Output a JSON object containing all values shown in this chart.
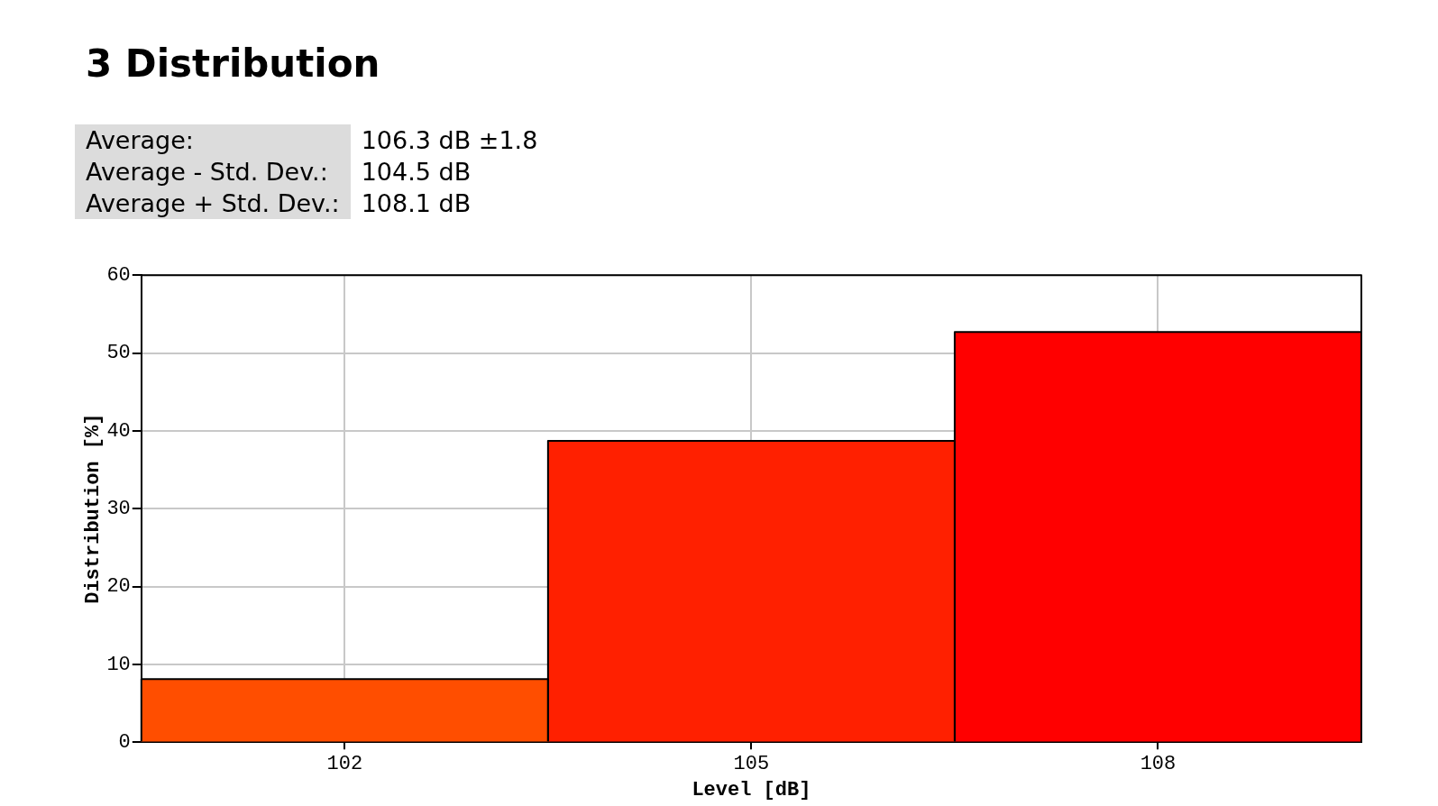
{
  "chart_data": {
    "type": "histogram",
    "title": "3 Distribution",
    "annotations": [
      "Average:",
      "106.3 dB ±1.8",
      "Average - Std. Dev.:",
      "104.5 dB",
      "Average + Std. Dev.:",
      "108.1 dB"
    ],
    "xlabel": "Level [dB]",
    "ylabel": "Distribution [%]",
    "bins": [
      100.5,
      103.5,
      106.5,
      109.5
    ],
    "values": [
      8.1,
      38.7,
      52.7
    ],
    "colors": [
      "#ff4e00",
      "#ff2000",
      "#ff0000"
    ],
    "xlim": [
      100.5,
      109.5
    ],
    "xticks": [
      102,
      105,
      108
    ],
    "ylim": [
      0,
      60
    ],
    "yticks": [
      0,
      10,
      20,
      30,
      40,
      50,
      60
    ],
    "grid": true
  }
}
